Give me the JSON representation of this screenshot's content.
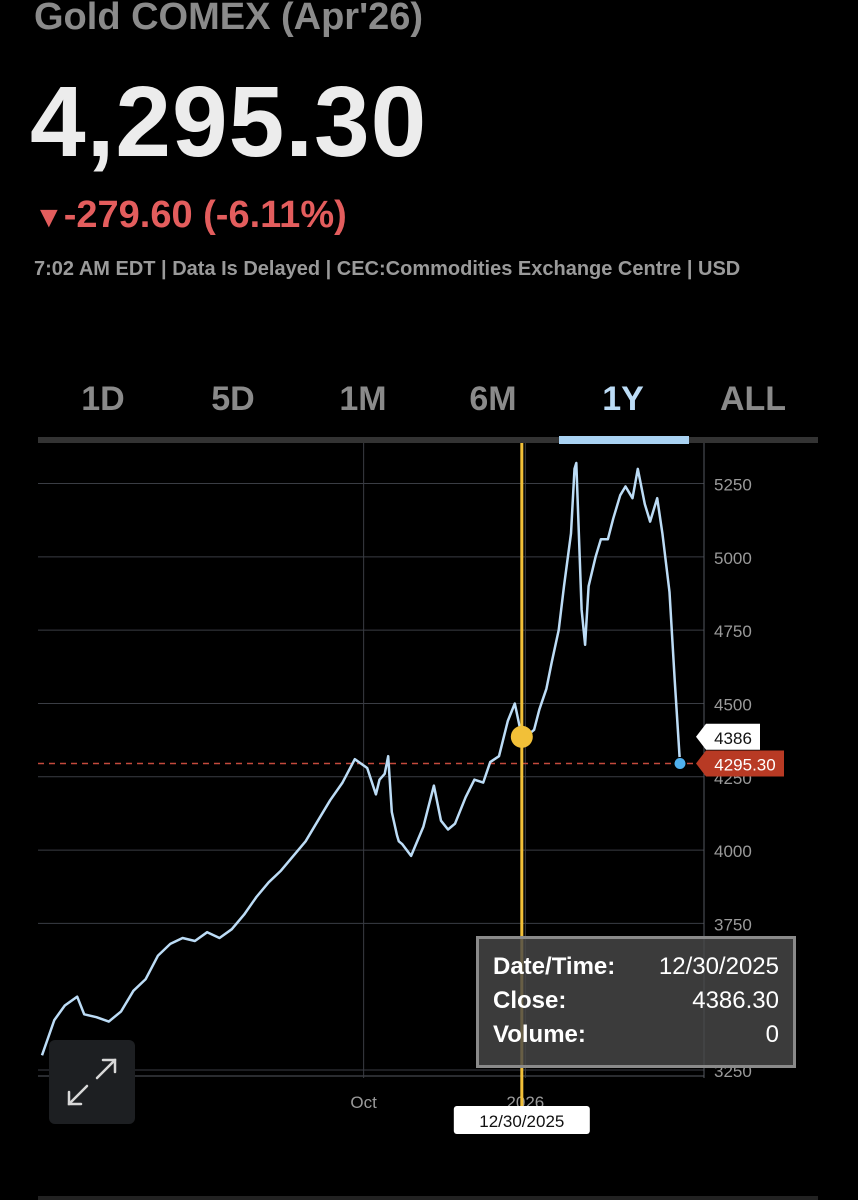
{
  "header": {
    "title": "Gold COMEX (Apr'26)",
    "price": "4,295.30",
    "change_arrow": "▼",
    "change": "-279.60 (-6.11%)",
    "meta": "7:02 AM EDT | Data Is Delayed | CEC:Commodities Exchange Centre | USD"
  },
  "tabs": [
    {
      "label": "1D",
      "active": false
    },
    {
      "label": "5D",
      "active": false
    },
    {
      "label": "1M",
      "active": false
    },
    {
      "label": "6M",
      "active": false
    },
    {
      "label": "1Y",
      "active": true
    },
    {
      "label": "ALL",
      "active": false
    }
  ],
  "colors": {
    "line": "#bcdcf6",
    "down": "#e35d5d",
    "crosshair": "#f2c038",
    "current_badge": "#b83a24",
    "active_tab": "#a9d2f2"
  },
  "chart_data": {
    "type": "line",
    "y_tick_labels": [
      "3250",
      "3750",
      "4000",
      "4250",
      "4500",
      "4750",
      "5000",
      "5250"
    ],
    "x_tick_labels": [
      "Oct",
      "2026"
    ],
    "ylim": [
      3250,
      5320
    ],
    "x_range": [
      "2025-04-01",
      "2026-03-30"
    ],
    "grid": true,
    "reference_line": {
      "value": 4295.3,
      "label": "4295.30"
    },
    "crosshair": {
      "date": "2025-12-30",
      "value": 4386.3,
      "y_label": "4386",
      "x_label": "12/30/2025"
    },
    "series": [
      {
        "x": [
          "2025-04-01",
          "2025-04-08",
          "2025-04-14",
          "2025-04-21",
          "2025-04-25",
          "2025-05-02",
          "2025-05-09",
          "2025-05-16",
          "2025-05-23",
          "2025-05-30",
          "2025-06-06",
          "2025-06-13",
          "2025-06-20",
          "2025-06-27",
          "2025-07-04",
          "2025-07-11",
          "2025-07-18",
          "2025-07-25",
          "2025-08-01",
          "2025-08-08",
          "2025-08-15",
          "2025-08-22",
          "2025-08-29",
          "2025-09-05",
          "2025-09-12",
          "2025-09-19",
          "2025-09-26",
          "2025-10-03",
          "2025-10-08",
          "2025-10-10",
          "2025-10-13",
          "2025-10-15",
          "2025-10-17",
          "2025-10-20",
          "2025-10-21",
          "2025-10-23",
          "2025-10-28",
          "2025-11-04",
          "2025-11-10",
          "2025-11-14",
          "2025-11-18",
          "2025-11-22",
          "2025-11-28",
          "2025-12-03",
          "2025-12-08",
          "2025-12-12",
          "2025-12-17",
          "2025-12-22",
          "2025-12-26",
          "2025-12-30",
          "2026-01-02",
          "2026-01-06",
          "2026-01-09",
          "2026-01-13",
          "2026-01-16",
          "2026-01-20",
          "2026-01-23",
          "2026-01-27",
          "2026-01-29",
          "2026-01-30",
          "2026-02-02",
          "2026-02-04",
          "2026-02-06",
          "2026-02-10",
          "2026-02-13",
          "2026-02-17",
          "2026-02-20",
          "2026-02-24",
          "2026-02-27",
          "2026-03-03",
          "2026-03-06",
          "2026-03-10",
          "2026-03-13",
          "2026-03-17",
          "2026-03-20",
          "2026-03-24",
          "2026-03-27",
          "2026-03-30"
        ],
        "y": [
          3300,
          3420,
          3470,
          3500,
          3440,
          3430,
          3415,
          3450,
          3520,
          3560,
          3640,
          3680,
          3700,
          3690,
          3720,
          3700,
          3730,
          3780,
          3840,
          3890,
          3930,
          3980,
          4030,
          4100,
          4170,
          4230,
          4310,
          4280,
          4190,
          4240,
          4260,
          4320,
          4130,
          4050,
          4030,
          4020,
          3980,
          4080,
          4220,
          4100,
          4070,
          4090,
          4180,
          4240,
          4230,
          4300,
          4320,
          4440,
          4500,
          4386,
          4390,
          4410,
          4480,
          4550,
          4640,
          4750,
          4900,
          5080,
          5300,
          5320,
          4820,
          4700,
          4900,
          5000,
          5060,
          5060,
          5130,
          5210,
          5240,
          5200,
          5300,
          5180,
          5120,
          5200,
          5080,
          4880,
          4580,
          4295.3
        ]
      }
    ]
  },
  "tooltip": {
    "rows": [
      {
        "key": "Date/Time:",
        "value": "12/30/2025"
      },
      {
        "key": "Close:",
        "value": "4386.30"
      },
      {
        "key": "Volume:",
        "value": "0"
      }
    ]
  },
  "icons": {
    "expand": "expand-arrows-icon"
  }
}
